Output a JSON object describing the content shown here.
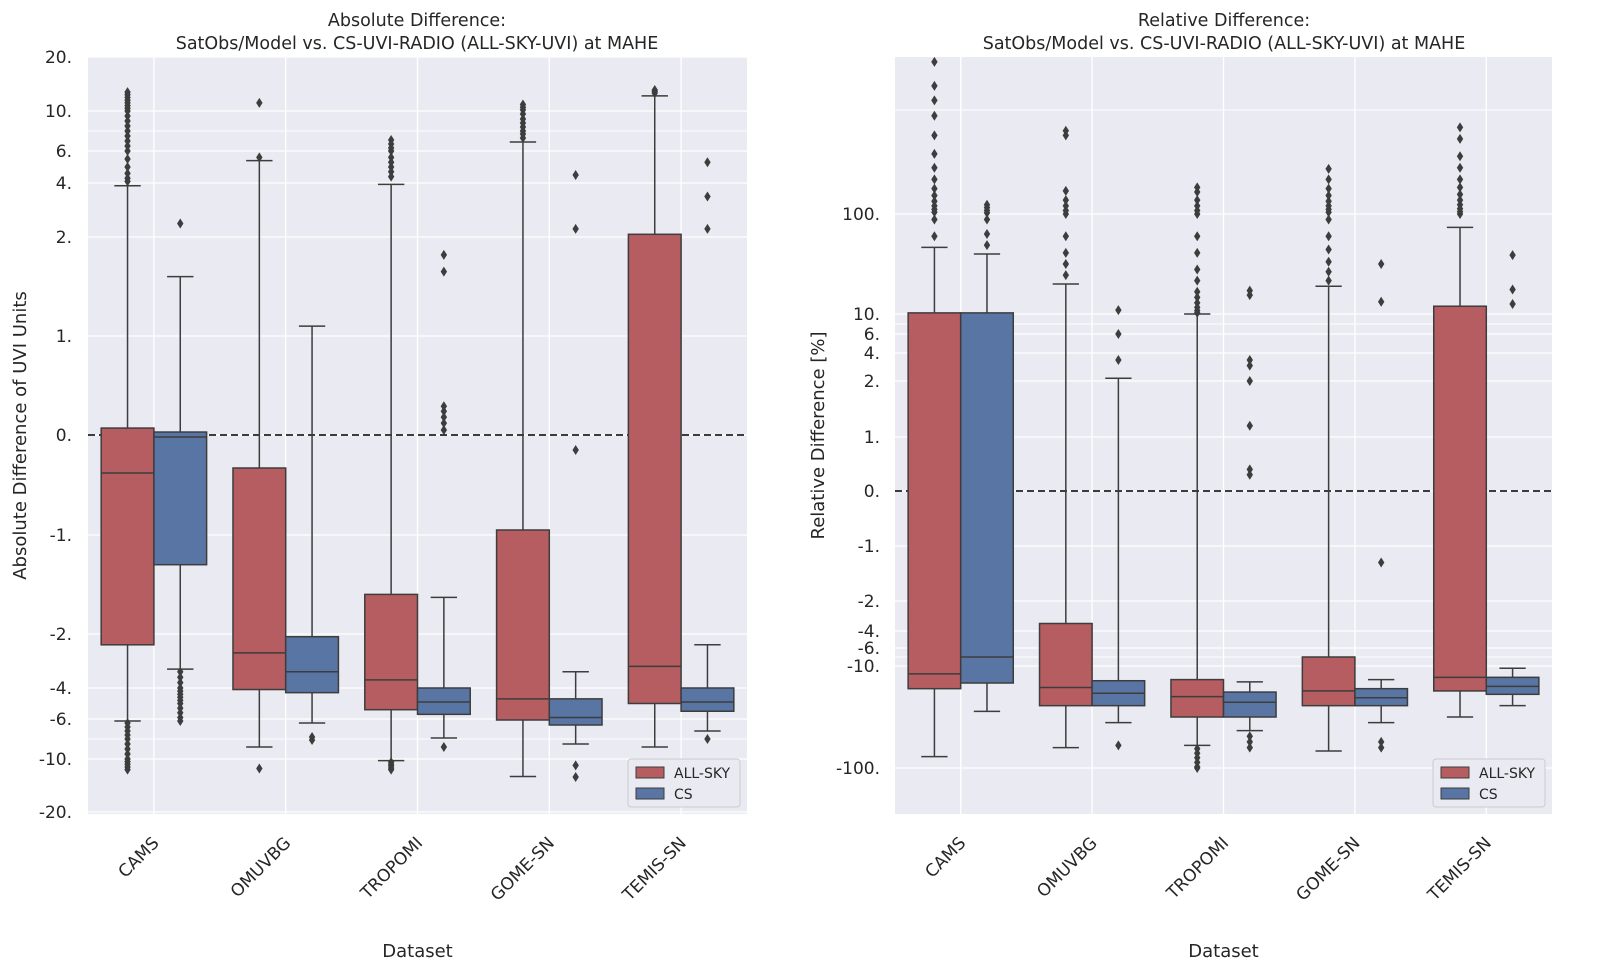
{
  "colors": {
    "background": "#eaeaf2",
    "grid": "#ffffff",
    "all_sky": "#b55d60",
    "cs": "#5875a4",
    "line": "#3d3d3d",
    "zero_line": "#000000"
  },
  "chart_data": [
    {
      "type": "box",
      "title": "Absolute Difference:",
      "subtitle": "SatObs/Model vs. CS-UVI-RADIO (ALL-SKY-UVI) at MAHE",
      "xlabel": "Dataset",
      "ylabel": "Absolute Difference of UVI Units",
      "scale": "symlog",
      "ylim": [
        -20,
        20
      ],
      "grid": true,
      "legend": "bottom-right",
      "ytick_labels": [
        "20.",
        "10.",
        "6.",
        "4.",
        "2.",
        "1.",
        "0.",
        "-1.",
        "-2.",
        "-4.",
        "-6.",
        "-10.",
        "-20."
      ],
      "ytick_values": [
        20,
        10,
        6,
        4,
        2,
        1,
        0,
        -1,
        -2,
        -4,
        -6,
        -10,
        -20
      ],
      "minor_gridlines": [
        8,
        -8
      ],
      "categories": [
        "CAMS",
        "OMUVBG",
        "TROPOMI",
        "GOME-SN",
        "TEMIS-SN"
      ],
      "series": [
        {
          "name": "ALL-SKY",
          "boxes": [
            {
              "q1": -2.4,
              "median": -0.38,
              "q3": 0.07,
              "whislo": -6.2,
              "whishi": 3.9,
              "fliers": [
                4.1,
                4.3,
                4.6,
                5.0,
                5.5,
                6.0,
                6.5,
                7.0,
                7.5,
                8.0,
                8.5,
                9.0,
                9.5,
                10.0,
                10.5,
                11.0,
                11.5,
                12.0,
                12.5,
                13.0,
                13.5,
                -6.4,
                -6.8,
                -7.2,
                -7.6,
                -8.0,
                -8.5,
                -9.0,
                -9.5,
                -10.0,
                -10.5,
                -11.0,
                -11.5,
                -12.0
              ]
            },
            {
              "q1": -4.1,
              "median": -2.7,
              "q3": -0.33,
              "whislo": -8.8,
              "whishi": 5.4,
              "fliers": [
                11.5,
                5.6,
                -11.8
              ]
            },
            {
              "q1": -5.4,
              "median": -3.7,
              "q3": -1.6,
              "whislo": -10.3,
              "whishi": 3.95,
              "fliers": [
                4.4,
                4.7,
                5.0,
                5.3,
                5.6,
                6.0,
                6.3,
                6.7,
                7.1,
                -10.6,
                -11.0,
                -11.3,
                -11.7,
                -12.0
              ]
            },
            {
              "q1": -6.1,
              "median": -4.7,
              "q3": -0.95,
              "whislo": -13.3,
              "whishi": 6.9,
              "fliers": [
                7.3,
                7.7,
                8.0,
                8.4,
                8.8,
                9.2,
                9.7,
                10.2,
                10.7,
                11.2
              ]
            },
            {
              "q1": -5.0,
              "median": -3.2,
              "q3": 2.1,
              "whislo": -8.8,
              "whishi": 12.8,
              "fliers": [
                13.3,
                13.6,
                13.9
              ]
            }
          ]
        },
        {
          "name": "CS",
          "boxes": [
            {
              "q1": -1.3,
              "median": -0.02,
              "q3": 0.03,
              "whislo": -3.3,
              "whishi": 1.6,
              "fliers": [
                2.5,
                -3.4,
                -3.6,
                -3.8,
                -4.0,
                -4.2,
                -4.4,
                -4.6,
                -4.8,
                -5.0,
                -5.3,
                -5.6,
                -5.9,
                -6.2
              ]
            },
            {
              "q1": -4.3,
              "median": -3.4,
              "q3": -2.1,
              "whislo": -6.4,
              "whishi": 1.1,
              "fliers": [
                -7.8,
                -8.1
              ]
            },
            {
              "q1": -5.7,
              "median": -4.9,
              "q3": -4.0,
              "whislo": -7.9,
              "whishi": -1.63,
              "fliers": [
                1.82,
                1.65,
                0.29,
                0.24,
                0.18,
                0.12,
                0.05,
                -8.8
              ]
            },
            {
              "q1": -6.6,
              "median": -5.9,
              "q3": -4.7,
              "whislo": -8.5,
              "whishi": -3.4,
              "fliers": [
                4.5,
                2.3,
                -0.15,
                -11.2,
                -13.4
              ]
            },
            {
              "q1": -5.5,
              "median": -4.9,
              "q3": -4.0,
              "whislo": -7.2,
              "whishi": -2.4,
              "fliers": [
                5.3,
                3.5,
                2.3,
                -8.0
              ]
            }
          ]
        }
      ]
    },
    {
      "type": "box",
      "title": "Relative Difference:",
      "subtitle": "SatObs/Model vs. CS-UVI-RADIO (ALL-SKY-UVI) at MAHE",
      "xlabel": "Dataset",
      "ylabel": "Relative Difference [%]",
      "scale": "symlog",
      "ylim": [
        -200,
        2100
      ],
      "grid": true,
      "legend": "bottom-right",
      "ytick_labels": [
        "100.",
        "10.",
        "6.",
        "4.",
        "2.",
        "1.",
        "0.",
        "-1.",
        "-2.",
        "-4.",
        "-6.",
        "-10.",
        "-100."
      ],
      "ytick_values": [
        100,
        10,
        6,
        4,
        2,
        1,
        0,
        -1,
        -2,
        -4,
        -6,
        -10,
        -100
      ],
      "minor_gridlines": [
        1000,
        8,
        -8
      ],
      "categories": [
        "CAMS",
        "OMUVBG",
        "TROPOMI",
        "GOME-SN",
        "TEMIS-SN"
      ],
      "series": [
        {
          "name": "ALL-SKY",
          "boxes": [
            {
              "q1": -30,
              "median": -17,
              "q3": 11,
              "whislo": -90,
              "whishi": 70,
              "fliers": [
                80,
                95,
                115,
                140,
                170,
                210,
                260,
                320,
                400,
                500,
                620,
                780,
                950,
                1200,
                1500,
                2000
              ]
            },
            {
              "q1": -45,
              "median": -29,
              "q3": -3.5,
              "whislo": -82,
              "whishi": 37,
              "fliers": [
                45,
                55,
                65,
                80,
                100,
                130,
                170,
                220,
                300,
                780,
                820
              ]
            },
            {
              "q1": -55,
              "median": -37,
              "q3": -22,
              "whislo": -80,
              "whishi": 10,
              "fliers": [
                11,
                13,
                16,
                20,
                25,
                30,
                40,
                50,
                65,
                80,
                100,
                130,
                170,
                220,
                290,
                330,
                -83,
                -87,
                -91,
                -95,
                -99,
                -100
              ]
            },
            {
              "q1": -45,
              "median": -32,
              "q3": -8,
              "whislo": -85,
              "whishi": 35,
              "fliers": [
                40,
                48,
                57,
                68,
                80,
                95,
                115,
                140,
                170,
                210,
                260,
                320,
                400,
                490
              ]
            },
            {
              "q1": -32,
              "median": -20,
              "q3": 17,
              "whislo": -55,
              "whishi": 88,
              "fliers": [
                100,
                120,
                145,
                180,
                220,
                270,
                330,
                400,
                500,
                600,
                750,
                850
              ]
            }
          ]
        },
        {
          "name": "CS",
          "boxes": [
            {
              "q1": -25,
              "median": -8,
              "q3": 11,
              "whislo": -50,
              "whishi": 64,
              "fliers": [
                72,
                82,
                95,
                110,
                130,
                155,
                180
              ]
            },
            {
              "q1": -45,
              "median": -34,
              "q3": -23,
              "whislo": -60,
              "whishi": 2.2,
              "fliers": [
                3.5,
                6.0,
                13.5,
                -80
              ]
            },
            {
              "q1": -55,
              "median": -42,
              "q3": -33,
              "whislo": -67,
              "whishi": -24,
              "fliers": [
                31,
                27,
                3.5,
                3.1,
                2.0,
                1.2,
                0.4,
                0.3,
                -72,
                -77,
                -82
              ]
            },
            {
              "q1": -45,
              "median": -38,
              "q3": -30,
              "whislo": -60,
              "whishi": -22,
              "fliers": [
                55,
                21,
                -1.3,
                -77,
                -82
              ]
            },
            {
              "q1": -35,
              "median": -28,
              "q3": -20,
              "whislo": -45,
              "whishi": -12,
              "fliers": [
                63,
                32,
                19
              ]
            }
          ]
        }
      ]
    }
  ]
}
